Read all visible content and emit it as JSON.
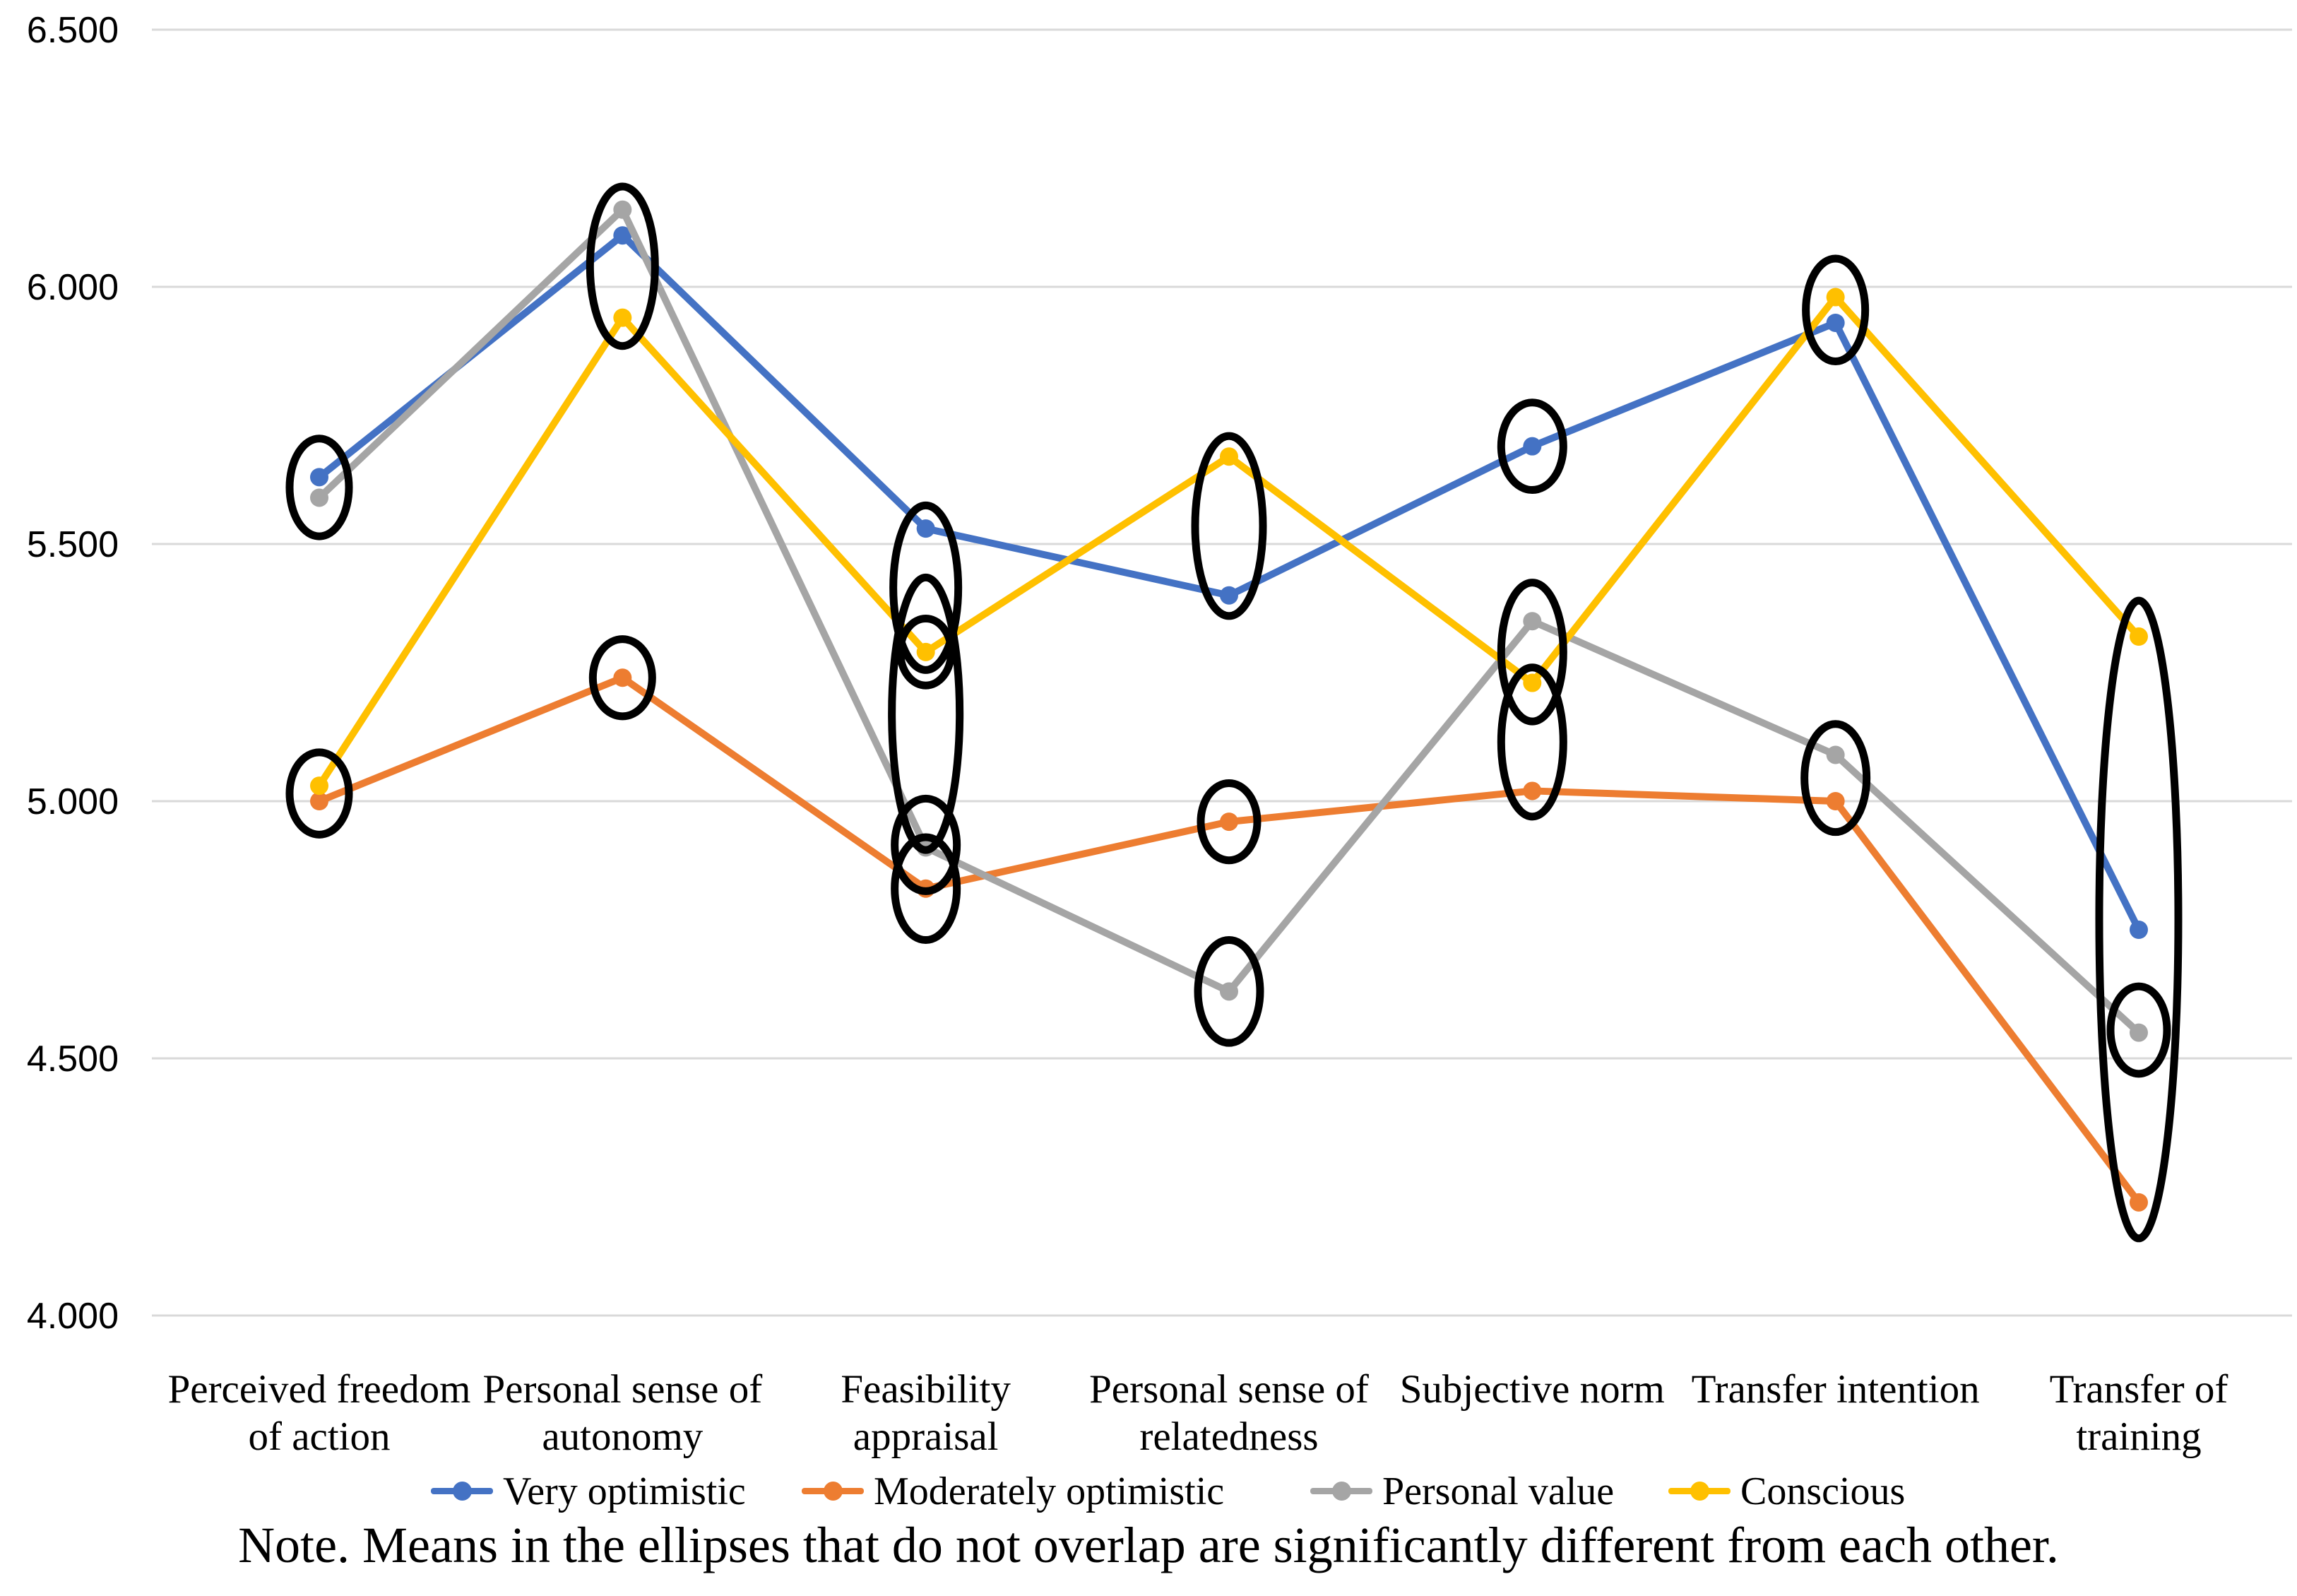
{
  "chart_data": {
    "type": "line",
    "title": "",
    "xlabel": "",
    "ylabel": "",
    "ylim": [
      4.0,
      6.5
    ],
    "grid": true,
    "legend_position": "bottom",
    "y_tick_labels": [
      "6.500",
      "6.000",
      "5.500",
      "5.000",
      "4.500",
      "4.000"
    ],
    "categories": [
      [
        "Perceived freedom",
        "of action"
      ],
      [
        "Personal sense of",
        "autonomy"
      ],
      [
        "Feasibility",
        "appraisal"
      ],
      [
        "Personal sense of",
        "relatedness"
      ],
      [
        "Subjective norm"
      ],
      [
        "Transfer intention"
      ],
      [
        "Transfer of",
        "training"
      ]
    ],
    "series": [
      {
        "name": "Very optimistic",
        "color": "#4472C4",
        "values": [
          5.63,
          6.1,
          5.53,
          5.4,
          5.69,
          5.93,
          4.75
        ]
      },
      {
        "name": "Moderately optimistic",
        "color": "#ED7D31",
        "values": [
          5.0,
          5.24,
          4.83,
          4.96,
          5.02,
          5.0,
          4.22
        ]
      },
      {
        "name": "Personal value",
        "color": "#A5A5A5",
        "values": [
          5.59,
          6.15,
          4.91,
          4.63,
          5.35,
          5.09,
          4.55
        ]
      },
      {
        "name": "Conscious",
        "color": "#FFC000",
        "values": [
          5.03,
          5.94,
          5.29,
          5.67,
          5.23,
          5.98,
          5.32
        ]
      }
    ],
    "ellipses": [
      {
        "category_index": 0,
        "center": 5.61,
        "ry": 0.095,
        "rx": 42
      },
      {
        "category_index": 0,
        "center": 5.015,
        "ry": 0.08,
        "rx": 42
      },
      {
        "category_index": 1,
        "center": 6.04,
        "ry": 0.155,
        "rx": 46
      },
      {
        "category_index": 1,
        "center": 5.24,
        "ry": 0.075,
        "rx": 42
      },
      {
        "category_index": 2,
        "center": 5.415,
        "ry": 0.16,
        "rx": 46
      },
      {
        "category_index": 2,
        "center": 5.29,
        "ry": 0.065,
        "rx": 36
      },
      {
        "category_index": 2,
        "center": 5.17,
        "ry": 0.265,
        "rx": 48
      },
      {
        "category_index": 2,
        "center": 4.915,
        "ry": 0.09,
        "rx": 44
      },
      {
        "category_index": 2,
        "center": 4.83,
        "ry": 0.1,
        "rx": 44
      },
      {
        "category_index": 3,
        "center": 5.535,
        "ry": 0.175,
        "rx": 48
      },
      {
        "category_index": 3,
        "center": 4.96,
        "ry": 0.075,
        "rx": 40
      },
      {
        "category_index": 3,
        "center": 4.63,
        "ry": 0.1,
        "rx": 44
      },
      {
        "category_index": 4,
        "center": 5.69,
        "ry": 0.085,
        "rx": 44
      },
      {
        "category_index": 4,
        "center": 5.29,
        "ry": 0.135,
        "rx": 44
      },
      {
        "category_index": 4,
        "center": 5.115,
        "ry": 0.145,
        "rx": 44
      },
      {
        "category_index": 5,
        "center": 5.955,
        "ry": 0.1,
        "rx": 42
      },
      {
        "category_index": 5,
        "center": 5.045,
        "ry": 0.105,
        "rx": 44
      },
      {
        "category_index": 6,
        "center": 4.77,
        "ry": 0.62,
        "rx": 56
      },
      {
        "category_index": 6,
        "center": 4.555,
        "ry": 0.085,
        "rx": 40
      }
    ],
    "colors": {
      "gridline": "#D9D9D9",
      "ellipse_stroke": "#000000",
      "text": "#000000",
      "background": "#FFFFFF"
    },
    "note": "Note. Means in the ellipses that do not overlap are significantly different from each other."
  }
}
